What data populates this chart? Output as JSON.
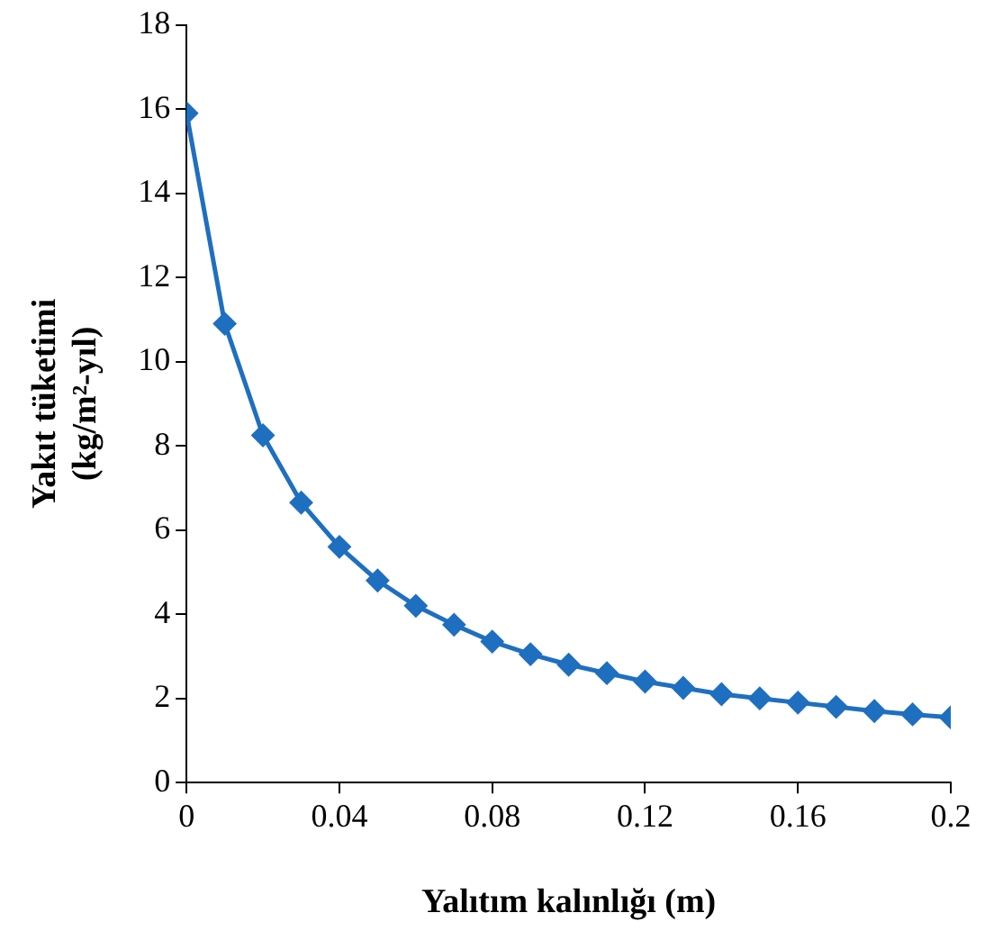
{
  "chart_data": {
    "type": "line",
    "xlabel": "Yalıtım kalınlığı (m)",
    "ylabel": "Yakıt tüketimi (kg/m²-yıl)",
    "x": [
      0,
      0.01,
      0.02,
      0.03,
      0.04,
      0.05,
      0.06,
      0.07,
      0.08,
      0.09,
      0.1,
      0.11,
      0.12,
      0.13,
      0.14,
      0.15,
      0.16,
      0.17,
      0.18,
      0.19,
      0.2
    ],
    "series": [
      {
        "color": "#1f6fc0",
        "values": [
          15.9,
          10.9,
          8.25,
          6.65,
          5.6,
          4.8,
          4.2,
          3.75,
          3.35,
          3.05,
          2.8,
          2.6,
          2.4,
          2.25,
          2.1,
          2.0,
          1.9,
          1.8,
          1.7,
          1.62,
          1.55
        ]
      }
    ],
    "xlim": [
      0,
      0.2
    ],
    "xticks": [
      0,
      0.04,
      0.08,
      0.12,
      0.16,
      0.2
    ],
    "ylim": [
      0,
      18
    ],
    "yticks": [
      0,
      2,
      4,
      6,
      8,
      10,
      12,
      14,
      16,
      18
    ],
    "grid": false,
    "legend": false,
    "marker": "diamond",
    "line_style": "solid"
  }
}
